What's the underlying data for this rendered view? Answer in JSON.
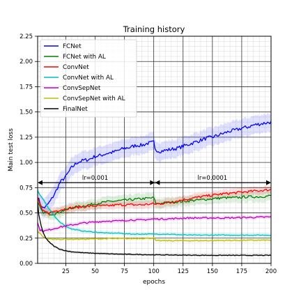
{
  "chart_data": {
    "type": "line",
    "title": "Training history",
    "xlabel": "epochs",
    "ylabel": "Main test loss",
    "xlim": [
      1,
      200
    ],
    "ylim": [
      0.0,
      2.25
    ],
    "xticks": [
      25,
      50,
      75,
      100,
      125,
      150,
      175,
      200
    ],
    "xtick_labels": [
      "25",
      "50",
      "75",
      "100",
      "125",
      "150",
      "175",
      "200"
    ],
    "yticks": [
      0.0,
      0.25,
      0.5,
      0.75,
      1.0,
      1.25,
      1.5,
      1.75,
      2.0,
      2.25
    ],
    "ytick_labels": [
      "0.00",
      "0.25",
      "0.50",
      "0.75",
      "1.00",
      "1.25",
      "1.50",
      "1.75",
      "2.00",
      "2.25"
    ],
    "grid": "major and minor",
    "legend_position": "top-left",
    "series": [
      {
        "name": "FCNet",
        "color": "#0000ff",
        "points": [
          [
            1,
            0.66
          ],
          [
            3,
            0.6
          ],
          [
            5,
            0.55
          ],
          [
            8,
            0.56
          ],
          [
            12,
            0.62
          ],
          [
            16,
            0.7
          ],
          [
            20,
            0.8
          ],
          [
            25,
            0.86
          ],
          [
            30,
            0.95
          ],
          [
            35,
            1.0
          ],
          [
            40,
            1.02
          ],
          [
            45,
            1.03
          ],
          [
            50,
            1.06
          ],
          [
            55,
            1.07
          ],
          [
            60,
            1.09
          ],
          [
            65,
            1.1
          ],
          [
            70,
            1.12
          ],
          [
            75,
            1.14
          ],
          [
            80,
            1.15
          ],
          [
            85,
            1.17
          ],
          [
            90,
            1.17
          ],
          [
            95,
            1.19
          ],
          [
            100,
            1.2
          ],
          [
            101,
            1.13
          ],
          [
            105,
            1.11
          ],
          [
            110,
            1.12
          ],
          [
            115,
            1.13
          ],
          [
            120,
            1.14
          ],
          [
            125,
            1.16
          ],
          [
            130,
            1.18
          ],
          [
            135,
            1.2
          ],
          [
            140,
            1.22
          ],
          [
            145,
            1.24
          ],
          [
            150,
            1.25
          ],
          [
            155,
            1.27
          ],
          [
            160,
            1.29
          ],
          [
            165,
            1.31
          ],
          [
            170,
            1.32
          ],
          [
            175,
            1.34
          ],
          [
            180,
            1.35
          ],
          [
            185,
            1.37
          ],
          [
            190,
            1.38
          ],
          [
            195,
            1.39
          ],
          [
            200,
            1.4
          ]
        ],
        "band": 0.09,
        "noise": 0.018
      },
      {
        "name": "FCNet with AL",
        "color": "#008000",
        "points": [
          [
            1,
            0.6
          ],
          [
            5,
            0.51
          ],
          [
            10,
            0.49
          ],
          [
            15,
            0.49
          ],
          [
            20,
            0.51
          ],
          [
            25,
            0.53
          ],
          [
            30,
            0.55
          ],
          [
            40,
            0.57
          ],
          [
            50,
            0.59
          ],
          [
            60,
            0.61
          ],
          [
            70,
            0.62
          ],
          [
            80,
            0.63
          ],
          [
            90,
            0.64
          ],
          [
            100,
            0.65
          ],
          [
            102,
            0.59
          ],
          [
            110,
            0.6
          ],
          [
            120,
            0.61
          ],
          [
            130,
            0.62
          ],
          [
            140,
            0.63
          ],
          [
            150,
            0.64
          ],
          [
            160,
            0.65
          ],
          [
            170,
            0.65
          ],
          [
            180,
            0.66
          ],
          [
            190,
            0.66
          ],
          [
            200,
            0.67
          ]
        ],
        "band": 0.05,
        "noise": 0.012
      },
      {
        "name": "ConvNet",
        "color": "#ff0000",
        "points": [
          [
            1,
            0.65
          ],
          [
            5,
            0.52
          ],
          [
            10,
            0.5
          ],
          [
            20,
            0.53
          ],
          [
            30,
            0.55
          ],
          [
            40,
            0.56
          ],
          [
            50,
            0.57
          ],
          [
            60,
            0.57
          ],
          [
            70,
            0.58
          ],
          [
            80,
            0.58
          ],
          [
            90,
            0.58
          ],
          [
            100,
            0.59
          ],
          [
            105,
            0.59
          ],
          [
            120,
            0.62
          ],
          [
            140,
            0.66
          ],
          [
            160,
            0.69
          ],
          [
            180,
            0.71
          ],
          [
            200,
            0.73
          ]
        ],
        "band": 0.04,
        "noise": 0.012
      },
      {
        "name": "ConvNet with AL",
        "color": "#00bfbf",
        "points": [
          [
            1,
            0.72
          ],
          [
            3,
            0.68
          ],
          [
            6,
            0.63
          ],
          [
            10,
            0.55
          ],
          [
            15,
            0.47
          ],
          [
            20,
            0.41
          ],
          [
            25,
            0.37
          ],
          [
            30,
            0.34
          ],
          [
            40,
            0.32
          ],
          [
            50,
            0.31
          ],
          [
            60,
            0.3
          ],
          [
            70,
            0.3
          ],
          [
            80,
            0.29
          ],
          [
            90,
            0.29
          ],
          [
            100,
            0.29
          ],
          [
            110,
            0.29
          ],
          [
            130,
            0.28
          ],
          [
            160,
            0.28
          ],
          [
            200,
            0.28
          ]
        ],
        "band": 0.02,
        "noise": 0.004
      },
      {
        "name": "ConvSepNet",
        "color": "#bf00bf",
        "points": [
          [
            1,
            0.4
          ],
          [
            3,
            0.33
          ],
          [
            6,
            0.32
          ],
          [
            10,
            0.33
          ],
          [
            20,
            0.36
          ],
          [
            30,
            0.38
          ],
          [
            40,
            0.4
          ],
          [
            50,
            0.41
          ],
          [
            60,
            0.42
          ],
          [
            70,
            0.42
          ],
          [
            80,
            0.43
          ],
          [
            90,
            0.43
          ],
          [
            100,
            0.44
          ],
          [
            110,
            0.44
          ],
          [
            130,
            0.45
          ],
          [
            160,
            0.45
          ],
          [
            200,
            0.46
          ]
        ],
        "band": 0.02,
        "noise": 0.008
      },
      {
        "name": "ConvSepNet with AL",
        "color": "#bfbf00",
        "points": [
          [
            1,
            0.32
          ],
          [
            5,
            0.27
          ],
          [
            10,
            0.24
          ],
          [
            20,
            0.24
          ],
          [
            40,
            0.24
          ],
          [
            60,
            0.245
          ],
          [
            80,
            0.245
          ],
          [
            100,
            0.25
          ],
          [
            102,
            0.225
          ],
          [
            110,
            0.225
          ],
          [
            140,
            0.225
          ],
          [
            170,
            0.228
          ],
          [
            200,
            0.23
          ]
        ],
        "band": 0.015,
        "noise": 0.005
      },
      {
        "name": "FinalNet",
        "color": "#000000",
        "points": [
          [
            1,
            0.6
          ],
          [
            2,
            0.48
          ],
          [
            4,
            0.37
          ],
          [
            6,
            0.3
          ],
          [
            8,
            0.25
          ],
          [
            10,
            0.22
          ],
          [
            15,
            0.17
          ],
          [
            20,
            0.14
          ],
          [
            25,
            0.125
          ],
          [
            30,
            0.115
          ],
          [
            40,
            0.105
          ],
          [
            50,
            0.1
          ],
          [
            60,
            0.095
          ],
          [
            75,
            0.09
          ],
          [
            100,
            0.085
          ],
          [
            125,
            0.082
          ],
          [
            150,
            0.08
          ],
          [
            175,
            0.08
          ],
          [
            200,
            0.08
          ]
        ],
        "band": 0.012,
        "noise": 0.003
      }
    ],
    "annotations": [
      {
        "text": "lr=0.001",
        "x": 50,
        "y": 0.8,
        "type": "double-arrow",
        "from": 1,
        "to": 101
      },
      {
        "text": "lr=0.0001",
        "x": 150,
        "y": 0.8,
        "type": "double-arrow",
        "from": 101,
        "to": 200
      }
    ]
  }
}
